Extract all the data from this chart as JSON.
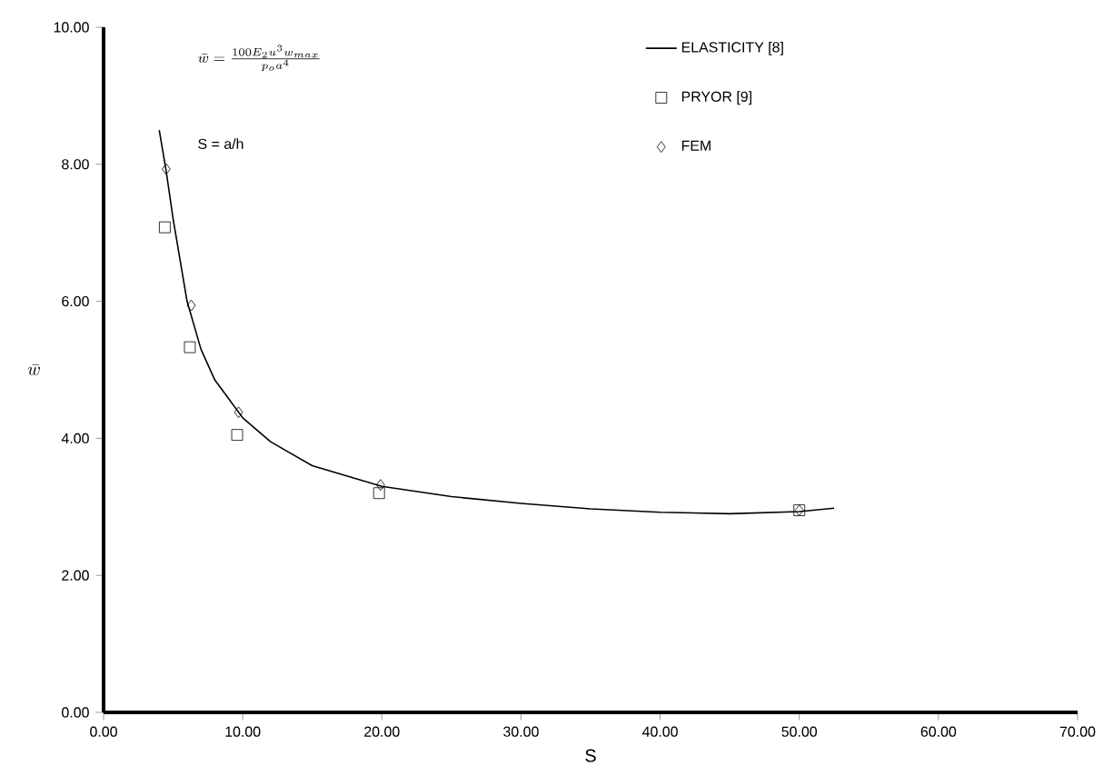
{
  "chart_data": {
    "type": "line",
    "xlabel": "S",
    "ylabel": "\\bar{w}",
    "annotations": [
      "\\bar{w} = \\frac{100E_{2}u^{3}w_{max}}{p_{o}a^{4}}",
      "S = a/h"
    ],
    "xlim": [
      0,
      70
    ],
    "ylim": [
      0,
      10
    ],
    "xticks": [
      {
        "value": 0,
        "label": "0.00"
      },
      {
        "value": 10,
        "label": "10.00"
      },
      {
        "value": 20,
        "label": "20.00"
      },
      {
        "value": 30,
        "label": "30.00"
      },
      {
        "value": 40,
        "label": "40.00"
      },
      {
        "value": 50,
        "label": "50.00"
      },
      {
        "value": 60,
        "label": "60.00"
      },
      {
        "value": 70,
        "label": "70.00"
      }
    ],
    "yticks": [
      {
        "value": 0,
        "label": "0.00"
      },
      {
        "value": 2,
        "label": "2.00"
      },
      {
        "value": 4,
        "label": "4.00"
      },
      {
        "value": 6,
        "label": "6.00"
      },
      {
        "value": 8,
        "label": "8.00"
      },
      {
        "value": 10,
        "label": "10.00"
      }
    ],
    "legend": "top right",
    "series": [
      {
        "name": "ELASTICITY [8]",
        "marker": "none",
        "color": "#000000",
        "x": [
          4,
          4.5,
          5,
          6,
          7,
          8,
          10,
          12,
          15,
          20,
          25,
          30,
          35,
          40,
          45,
          50,
          52.5
        ],
        "values": [
          8.5,
          7.9,
          7.2,
          6.0,
          5.3,
          4.85,
          4.3,
          3.95,
          3.6,
          3.3,
          3.15,
          3.05,
          2.97,
          2.92,
          2.9,
          2.93,
          2.98
        ]
      },
      {
        "name": "PRYOR [9]",
        "type": "scatter",
        "marker": "square",
        "color": "#000000",
        "x": [
          4.4,
          6.2,
          9.6,
          19.8,
          50
        ],
        "values": [
          7.08,
          5.33,
          4.05,
          3.2,
          2.95
        ]
      },
      {
        "name": "FEM",
        "type": "scatter",
        "marker": "diamond",
        "color": "#000000",
        "x": [
          4.5,
          6.3,
          9.7,
          19.9,
          50
        ],
        "values": [
          7.93,
          5.94,
          4.38,
          3.32,
          2.95
        ]
      }
    ]
  }
}
